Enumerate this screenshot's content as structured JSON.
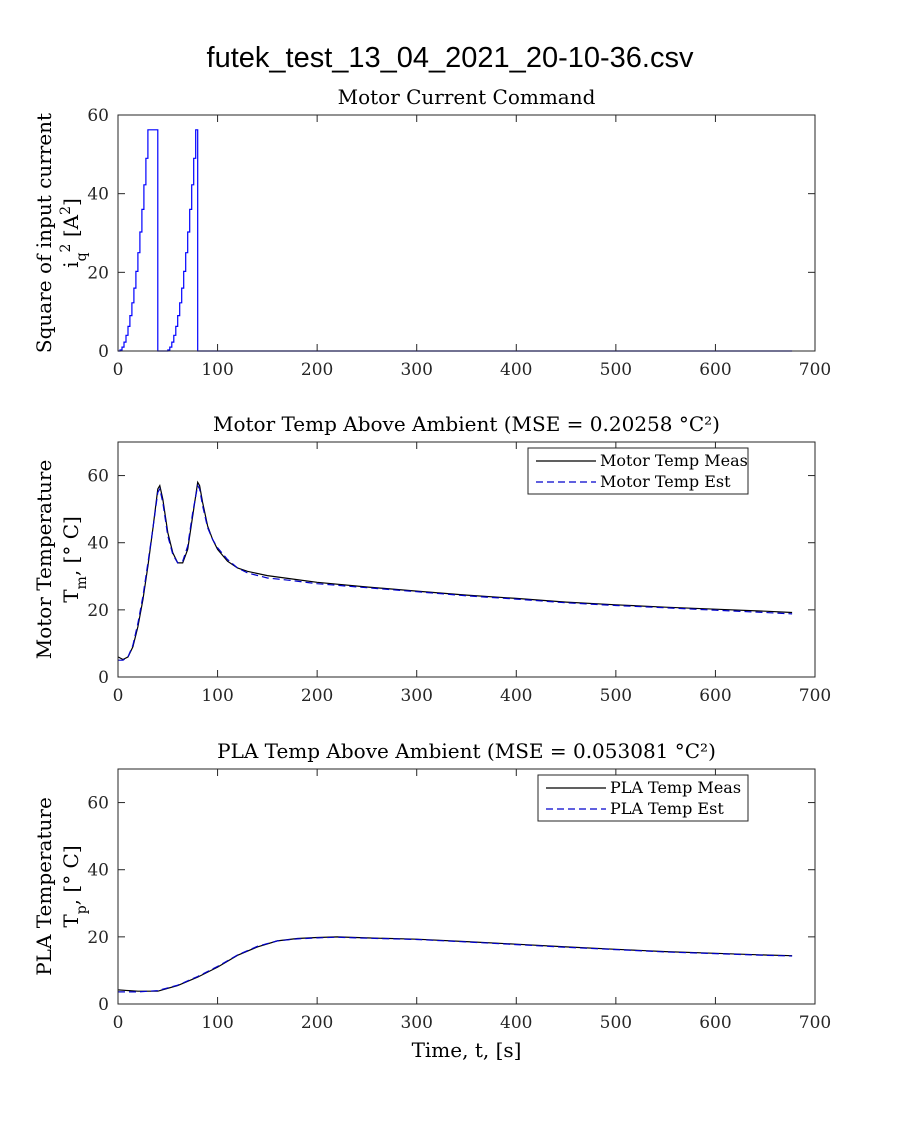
{
  "figure_title": "futek_test_13_04_2021_20-10-36.csv",
  "chart_data": [
    {
      "type": "line",
      "title": "Motor Current Command",
      "ylabel_line1": "Square of input current",
      "ylabel_line2": "i_q^2 [A^2]",
      "xlabel": "",
      "xlim": [
        0,
        700
      ],
      "ylim": [
        0,
        60
      ],
      "xticks": [
        0,
        100,
        200,
        300,
        400,
        500,
        600,
        700
      ],
      "yticks": [
        0,
        20,
        40,
        60
      ],
      "legend": null,
      "series": [
        {
          "color": "#0000ff",
          "style": "solid",
          "step": true,
          "points": [
            [
              0,
              0
            ],
            [
              2,
              0
            ],
            [
              2,
              0.25
            ],
            [
              4,
              0.25
            ],
            [
              4,
              1
            ],
            [
              6,
              1
            ],
            [
              6,
              2.25
            ],
            [
              8,
              2.25
            ],
            [
              8,
              4
            ],
            [
              10,
              4
            ],
            [
              10,
              6.25
            ],
            [
              12,
              6.25
            ],
            [
              12,
              9
            ],
            [
              14,
              9
            ],
            [
              14,
              12.25
            ],
            [
              16,
              12.25
            ],
            [
              16,
              16
            ],
            [
              18,
              16
            ],
            [
              18,
              20.25
            ],
            [
              20,
              20.25
            ],
            [
              20,
              25
            ],
            [
              22,
              25
            ],
            [
              22,
              30.25
            ],
            [
              24,
              30.25
            ],
            [
              24,
              36
            ],
            [
              26,
              36
            ],
            [
              26,
              42.25
            ],
            [
              28,
              42.25
            ],
            [
              28,
              49
            ],
            [
              30,
              49
            ],
            [
              30,
              56.25
            ],
            [
              40,
              56.25
            ],
            [
              40,
              0
            ],
            [
              50,
              0
            ],
            [
              50,
              0.25
            ],
            [
              52,
              0.25
            ],
            [
              52,
              1
            ],
            [
              54,
              1
            ],
            [
              54,
              2.25
            ],
            [
              56,
              2.25
            ],
            [
              56,
              4
            ],
            [
              58,
              4
            ],
            [
              58,
              6.25
            ],
            [
              60,
              6.25
            ],
            [
              60,
              9
            ],
            [
              62,
              9
            ],
            [
              62,
              12.25
            ],
            [
              64,
              12.25
            ],
            [
              64,
              16
            ],
            [
              66,
              16
            ],
            [
              66,
              20.25
            ],
            [
              68,
              20.25
            ],
            [
              68,
              25
            ],
            [
              70,
              25
            ],
            [
              70,
              30.25
            ],
            [
              72,
              30.25
            ],
            [
              72,
              36
            ],
            [
              74,
              36
            ],
            [
              74,
              42.25
            ],
            [
              76,
              42.25
            ],
            [
              76,
              49
            ],
            [
              78,
              49
            ],
            [
              78,
              56.25
            ],
            [
              80,
              56.25
            ],
            [
              80,
              0
            ],
            [
              677,
              0
            ]
          ]
        }
      ]
    },
    {
      "type": "line",
      "title": "Motor Temp Above Ambient (MSE = 0.20258 °C²)",
      "ylabel_line1": "Motor Temperature",
      "ylabel_line2": "T_m, [° C]",
      "xlabel": "",
      "xlim": [
        0,
        700
      ],
      "ylim": [
        0,
        70
      ],
      "xticks": [
        0,
        100,
        200,
        300,
        400,
        500,
        600,
        700
      ],
      "yticks": [
        0,
        20,
        40,
        60
      ],
      "legend": {
        "position": "top-right",
        "entries": [
          "Motor Temp Meas",
          "Motor Temp Est"
        ]
      },
      "series": [
        {
          "name": "Motor Temp Meas",
          "color": "#000000",
          "style": "solid",
          "points": [
            [
              0,
              6
            ],
            [
              5,
              5.2
            ],
            [
              10,
              6
            ],
            [
              15,
              9
            ],
            [
              20,
              15
            ],
            [
              25,
              23
            ],
            [
              30,
              33
            ],
            [
              35,
              44
            ],
            [
              40,
              56
            ],
            [
              42,
              57
            ],
            [
              45,
              53
            ],
            [
              50,
              43
            ],
            [
              55,
              37
            ],
            [
              60,
              34
            ],
            [
              65,
              34
            ],
            [
              70,
              38
            ],
            [
              75,
              48
            ],
            [
              80,
              58
            ],
            [
              82,
              57
            ],
            [
              85,
              52
            ],
            [
              90,
              45
            ],
            [
              95,
              41
            ],
            [
              100,
              38
            ],
            [
              110,
              34.5
            ],
            [
              120,
              32.5
            ],
            [
              130,
              31.5
            ],
            [
              150,
              30.2
            ],
            [
              175,
              29.2
            ],
            [
              200,
              28.2
            ],
            [
              250,
              26.8
            ],
            [
              300,
              25.6
            ],
            [
              350,
              24.4
            ],
            [
              400,
              23.4
            ],
            [
              450,
              22.3
            ],
            [
              500,
              21.5
            ],
            [
              550,
              20.8
            ],
            [
              600,
              20.2
            ],
            [
              650,
              19.6
            ],
            [
              677,
              19.2
            ]
          ]
        },
        {
          "name": "Motor Temp Est",
          "color": "#0000cc",
          "style": "dash",
          "points": [
            [
              0,
              5
            ],
            [
              5,
              5
            ],
            [
              10,
              6
            ],
            [
              15,
              9.5
            ],
            [
              20,
              16
            ],
            [
              25,
              24
            ],
            [
              30,
              34
            ],
            [
              35,
              44
            ],
            [
              40,
              55
            ],
            [
              42,
              56
            ],
            [
              45,
              52
            ],
            [
              50,
              42
            ],
            [
              55,
              36.5
            ],
            [
              60,
              34
            ],
            [
              65,
              34.5
            ],
            [
              70,
              39
            ],
            [
              75,
              49
            ],
            [
              80,
              57
            ],
            [
              82,
              56
            ],
            [
              85,
              51
            ],
            [
              90,
              44.5
            ],
            [
              95,
              41
            ],
            [
              100,
              38.5
            ],
            [
              110,
              35
            ],
            [
              120,
              32.5
            ],
            [
              130,
              31
            ],
            [
              150,
              29.5
            ],
            [
              175,
              28.7
            ],
            [
              200,
              27.8
            ],
            [
              250,
              26.6
            ],
            [
              300,
              25.4
            ],
            [
              350,
              24.2
            ],
            [
              400,
              23.2
            ],
            [
              450,
              22.1
            ],
            [
              500,
              21.3
            ],
            [
              550,
              20.6
            ],
            [
              600,
              19.9
            ],
            [
              650,
              19.2
            ],
            [
              677,
              18.8
            ]
          ]
        }
      ]
    },
    {
      "type": "line",
      "title": "PLA Temp Above Ambient (MSE = 0.053081 °C²)",
      "ylabel_line1": "PLA Temperature",
      "ylabel_line2": "T_p, [° C]",
      "xlabel": "Time, t, [s]",
      "xlim": [
        0,
        700
      ],
      "ylim": [
        0,
        70
      ],
      "xticks": [
        0,
        100,
        200,
        300,
        400,
        500,
        600,
        700
      ],
      "yticks": [
        0,
        20,
        40,
        60
      ],
      "legend": {
        "position": "top-right",
        "entries": [
          "PLA Temp Meas",
          "PLA Temp Est"
        ]
      },
      "series": [
        {
          "name": "PLA Temp Meas",
          "color": "#000000",
          "style": "solid",
          "points": [
            [
              0,
              4.2
            ],
            [
              20,
              3.8
            ],
            [
              40,
              3.8
            ],
            [
              60,
              5.5
            ],
            [
              80,
              8
            ],
            [
              100,
              11
            ],
            [
              120,
              14.5
            ],
            [
              140,
              17
            ],
            [
              160,
              18.8
            ],
            [
              180,
              19.5
            ],
            [
              200,
              19.8
            ],
            [
              220,
              20
            ],
            [
              250,
              19.7
            ],
            [
              300,
              19.3
            ],
            [
              350,
              18.6
            ],
            [
              400,
              17.8
            ],
            [
              450,
              17
            ],
            [
              500,
              16.3
            ],
            [
              550,
              15.6
            ],
            [
              600,
              15.1
            ],
            [
              650,
              14.6
            ],
            [
              677,
              14.4
            ]
          ]
        },
        {
          "name": "PLA Temp Est",
          "color": "#0000cc",
          "style": "dash",
          "points": [
            [
              0,
              3.6
            ],
            [
              20,
              3.6
            ],
            [
              40,
              4
            ],
            [
              60,
              5.6
            ],
            [
              80,
              8.2
            ],
            [
              100,
              11.2
            ],
            [
              120,
              14.6
            ],
            [
              140,
              17.2
            ],
            [
              160,
              18.8
            ],
            [
              180,
              19.4
            ],
            [
              200,
              19.7
            ],
            [
              220,
              19.9
            ],
            [
              250,
              19.6
            ],
            [
              300,
              19.2
            ],
            [
              350,
              18.5
            ],
            [
              400,
              17.7
            ],
            [
              450,
              16.9
            ],
            [
              500,
              16.2
            ],
            [
              550,
              15.5
            ],
            [
              600,
              15
            ],
            [
              650,
              14.5
            ],
            [
              677,
              14.3
            ]
          ]
        }
      ]
    }
  ]
}
